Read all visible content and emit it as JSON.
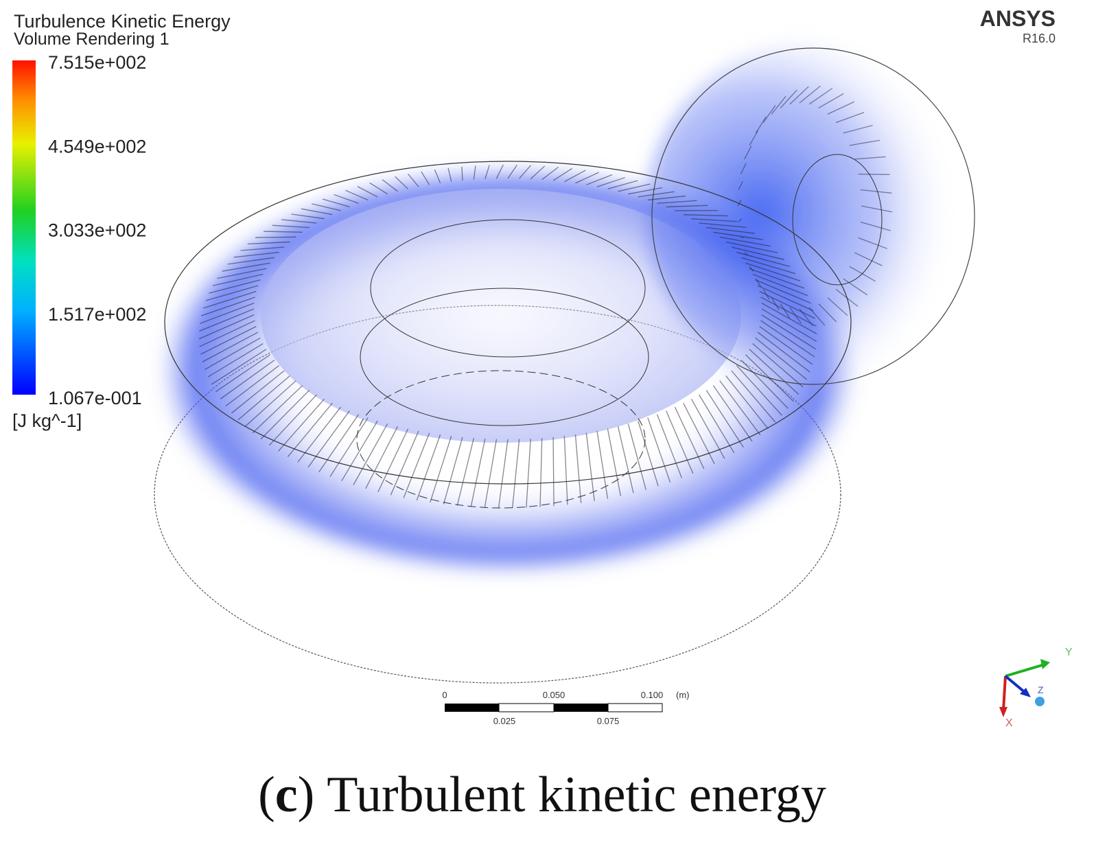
{
  "legend": {
    "title": "Turbulence Kinetic Energy",
    "subtitle": "Volume Rendering 1",
    "ticks": [
      "7.515e+002",
      "4.549e+002",
      "3.033e+002",
      "1.517e+002",
      "1.067e-001"
    ],
    "unit": "[J kg^-1]"
  },
  "brand": {
    "name": "ANSYS",
    "version": "R16.0"
  },
  "scale_bar": {
    "top_labels": [
      "0",
      "0.050",
      "0.100"
    ],
    "unit": "(m)",
    "bottom_labels": [
      "0.025",
      "0.075"
    ]
  },
  "axes": {
    "y": "Y",
    "z": "Z",
    "x": "X"
  },
  "caption": {
    "open": "(",
    "label": "c",
    "close": ")",
    "text": "Turbulent kinetic energy"
  }
}
